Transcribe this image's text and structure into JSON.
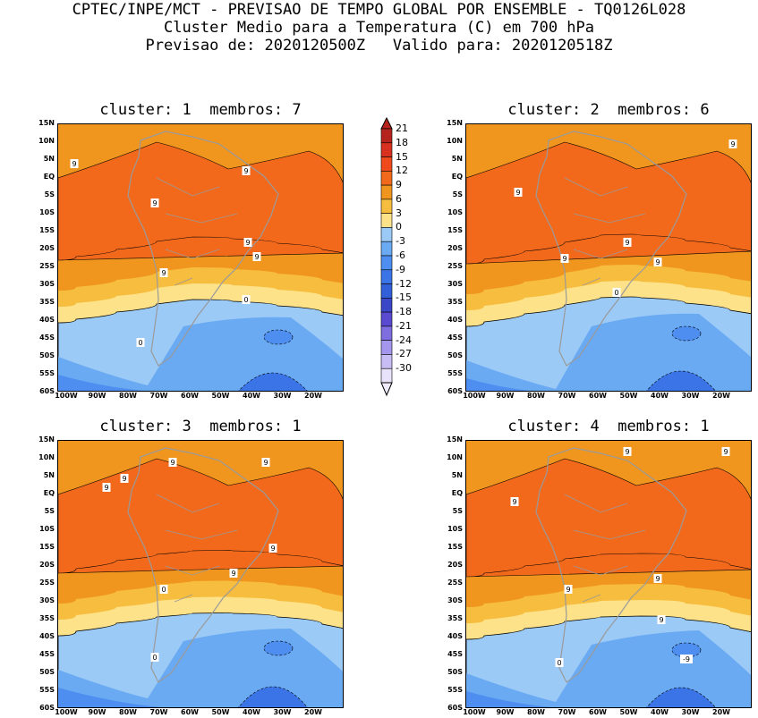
{
  "header": {
    "line1": "CPTEC/INPE/MCT - PREVISAO DE TEMPO GLOBAL POR ENSEMBLE - TQ0126L028",
    "line2": "Cluster Medio para a Temperatura (C) em 700 hPa",
    "line3": "Previsao de: 2020120500Z   Valido para: 2020120518Z"
  },
  "panels": [
    {
      "title": "cluster: 1  membros: 7"
    },
    {
      "title": "cluster: 2  membros: 6"
    },
    {
      "title": "cluster: 3  membros: 1"
    },
    {
      "title": "cluster: 4  membros: 1"
    }
  ],
  "lat_labels": [
    "15N",
    "10N",
    "5N",
    "EQ",
    "5S",
    "10S",
    "15S",
    "20S",
    "25S",
    "30S",
    "35S",
    "40S",
    "45S",
    "50S",
    "55S",
    "60S"
  ],
  "lon_labels": [
    "100W",
    "90W",
    "80W",
    "70W",
    "60W",
    "50W",
    "40W",
    "30W",
    "20W"
  ],
  "colorbar": {
    "labels": [
      "21",
      "18",
      "15",
      "12",
      "9",
      "6",
      "3",
      "0",
      "-3",
      "-6",
      "-9",
      "-12",
      "-15",
      "-18",
      "-21",
      "-24",
      "-27",
      "-30"
    ],
    "colors": [
      "#b4231c",
      "#d8311f",
      "#ee4a1c",
      "#f3691c",
      "#f0961f",
      "#f7bd3e",
      "#fde289",
      "#9ccaf6",
      "#6aaaf2",
      "#4d8ef0",
      "#3b74e6",
      "#3260d8",
      "#3a48c8",
      "#5a4ad0",
      "#7e6ee0",
      "#a496ec",
      "#c8bcf4",
      "#e8e2fa"
    ]
  },
  "contour_labels": {
    "p1": [
      "9",
      "9",
      "9",
      "9",
      "9",
      "9",
      "0",
      "0"
    ],
    "p2": [
      "9",
      "9",
      "9",
      "9",
      "9",
      "0"
    ],
    "p3": [
      "9",
      "9",
      "9",
      "9",
      "9",
      "9",
      "0",
      "0"
    ],
    "p4": [
      "9",
      "9",
      "9",
      "9",
      "9",
      "9",
      "0",
      "-9"
    ]
  }
}
